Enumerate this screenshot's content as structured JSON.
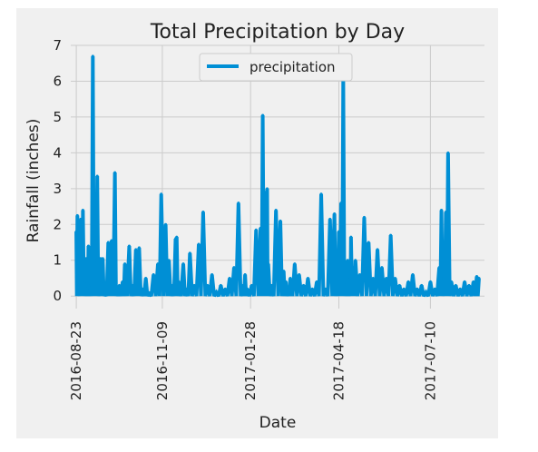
{
  "chart_data": {
    "type": "line",
    "title": "Total Precipitation by Day",
    "xlabel": "Date",
    "ylabel": "Rainfall (inches)",
    "legend": {
      "labels": [
        "precipitation"
      ],
      "placement": "top-center"
    },
    "grid": true,
    "xlim": [
      "2016-08-18",
      "2017-08-28"
    ],
    "ylim": [
      -0.35,
      7
    ],
    "x_ticks": [
      "2016-08-23",
      "2016-11-09",
      "2017-01-28",
      "2017-04-18",
      "2017-07-10"
    ],
    "y_ticks": [
      0,
      1,
      2,
      3,
      4,
      5,
      6,
      7
    ],
    "series": [
      {
        "name": "precipitation",
        "color": "#008fd5",
        "x": [
          "2016-08-23",
          "2016-08-24",
          "2016-08-25",
          "2016-08-27",
          "2016-08-28",
          "2016-08-29",
          "2016-08-31",
          "2016-09-01",
          "2016-09-02",
          "2016-09-03",
          "2016-09-05",
          "2016-09-07",
          "2016-09-09",
          "2016-09-11",
          "2016-09-13",
          "2016-09-14",
          "2016-09-15",
          "2016-09-16",
          "2016-09-18",
          "2016-09-21",
          "2016-09-24",
          "2016-09-27",
          "2016-09-29",
          "2016-10-01",
          "2016-10-04",
          "2016-10-06",
          "2016-10-10",
          "2016-10-13",
          "2016-10-16",
          "2016-10-19",
          "2016-10-22",
          "2016-10-25",
          "2016-10-28",
          "2016-11-01",
          "2016-11-05",
          "2016-11-08",
          "2016-11-12",
          "2016-11-15",
          "2016-11-18",
          "2016-11-21",
          "2016-11-22",
          "2016-11-24",
          "2016-11-28",
          "2016-12-01",
          "2016-12-04",
          "2016-12-08",
          "2016-12-12",
          "2016-12-16",
          "2016-12-20",
          "2016-12-24",
          "2016-12-28",
          "2017-01-01",
          "2017-01-05",
          "2017-01-09",
          "2017-01-13",
          "2017-01-17",
          "2017-01-21",
          "2017-01-23",
          "2017-01-25",
          "2017-01-29",
          "2017-02-02",
          "2017-02-06",
          "2017-02-08",
          "2017-02-10",
          "2017-02-12",
          "2017-02-13",
          "2017-02-16",
          "2017-02-20",
          "2017-02-24",
          "2017-02-27",
          "2017-03-01",
          "2017-03-03",
          "2017-03-05",
          "2017-03-09",
          "2017-03-13",
          "2017-03-17",
          "2017-03-21",
          "2017-03-25",
          "2017-03-29",
          "2017-04-02",
          "2017-04-06",
          "2017-04-10",
          "2017-04-14",
          "2017-04-16",
          "2017-04-18",
          "2017-04-20",
          "2017-04-22",
          "2017-04-24",
          "2017-04-26",
          "2017-04-28",
          "2017-04-29",
          "2017-05-01",
          "2017-05-03",
          "2017-05-07",
          "2017-05-11",
          "2017-05-15",
          "2017-05-19",
          "2017-05-23",
          "2017-05-27",
          "2017-05-31",
          "2017-06-04",
          "2017-06-08",
          "2017-06-12",
          "2017-06-16",
          "2017-06-20",
          "2017-06-24",
          "2017-06-28",
          "2017-07-02",
          "2017-07-06",
          "2017-07-10",
          "2017-07-14",
          "2017-07-18",
          "2017-07-20",
          "2017-07-22",
          "2017-07-24",
          "2017-07-26",
          "2017-07-29",
          "2017-08-02",
          "2017-08-06",
          "2017-08-10",
          "2017-08-14",
          "2017-08-18",
          "2017-08-21",
          "2017-08-23"
        ],
        "values": [
          1.8,
          2.25,
          0.3,
          2.15,
          2.1,
          2.4,
          0.4,
          1.05,
          0.2,
          1.4,
          0.3,
          6.7,
          1.0,
          3.35,
          0.2,
          1.05,
          0.4,
          1.05,
          0.1,
          1.5,
          1.55,
          3.45,
          0.2,
          0.3,
          0.4,
          0.9,
          1.4,
          0.3,
          1.3,
          1.35,
          0.2,
          0.5,
          0.1,
          0.6,
          0.9,
          2.85,
          2.0,
          1.0,
          0.3,
          1.6,
          1.65,
          0.4,
          0.9,
          0.2,
          1.2,
          0.3,
          1.45,
          2.35,
          0.3,
          0.6,
          0.1,
          0.3,
          0.2,
          0.5,
          0.8,
          2.6,
          0.3,
          0.6,
          0.2,
          0.3,
          1.85,
          1.9,
          5.05,
          2.9,
          3.0,
          0.9,
          0.3,
          2.4,
          2.1,
          0.7,
          0.4,
          0.2,
          0.5,
          0.9,
          0.6,
          0.3,
          0.5,
          0.2,
          0.4,
          2.85,
          0.2,
          2.15,
          2.3,
          0.4,
          1.8,
          2.6,
          6.2,
          0.3,
          1.0,
          0.5,
          1.65,
          0.8,
          1.0,
          0.6,
          2.2,
          1.5,
          0.5,
          1.3,
          0.8,
          0.5,
          1.7,
          0.5,
          0.3,
          0.2,
          0.4,
          0.6,
          0.2,
          0.3,
          0.1,
          0.4,
          0.2,
          0.8,
          2.4,
          0.5,
          2.35,
          4.0,
          0.4,
          0.3,
          0.2,
          0.4,
          0.3,
          0.4,
          0.55,
          0.5
        ]
      }
    ]
  }
}
